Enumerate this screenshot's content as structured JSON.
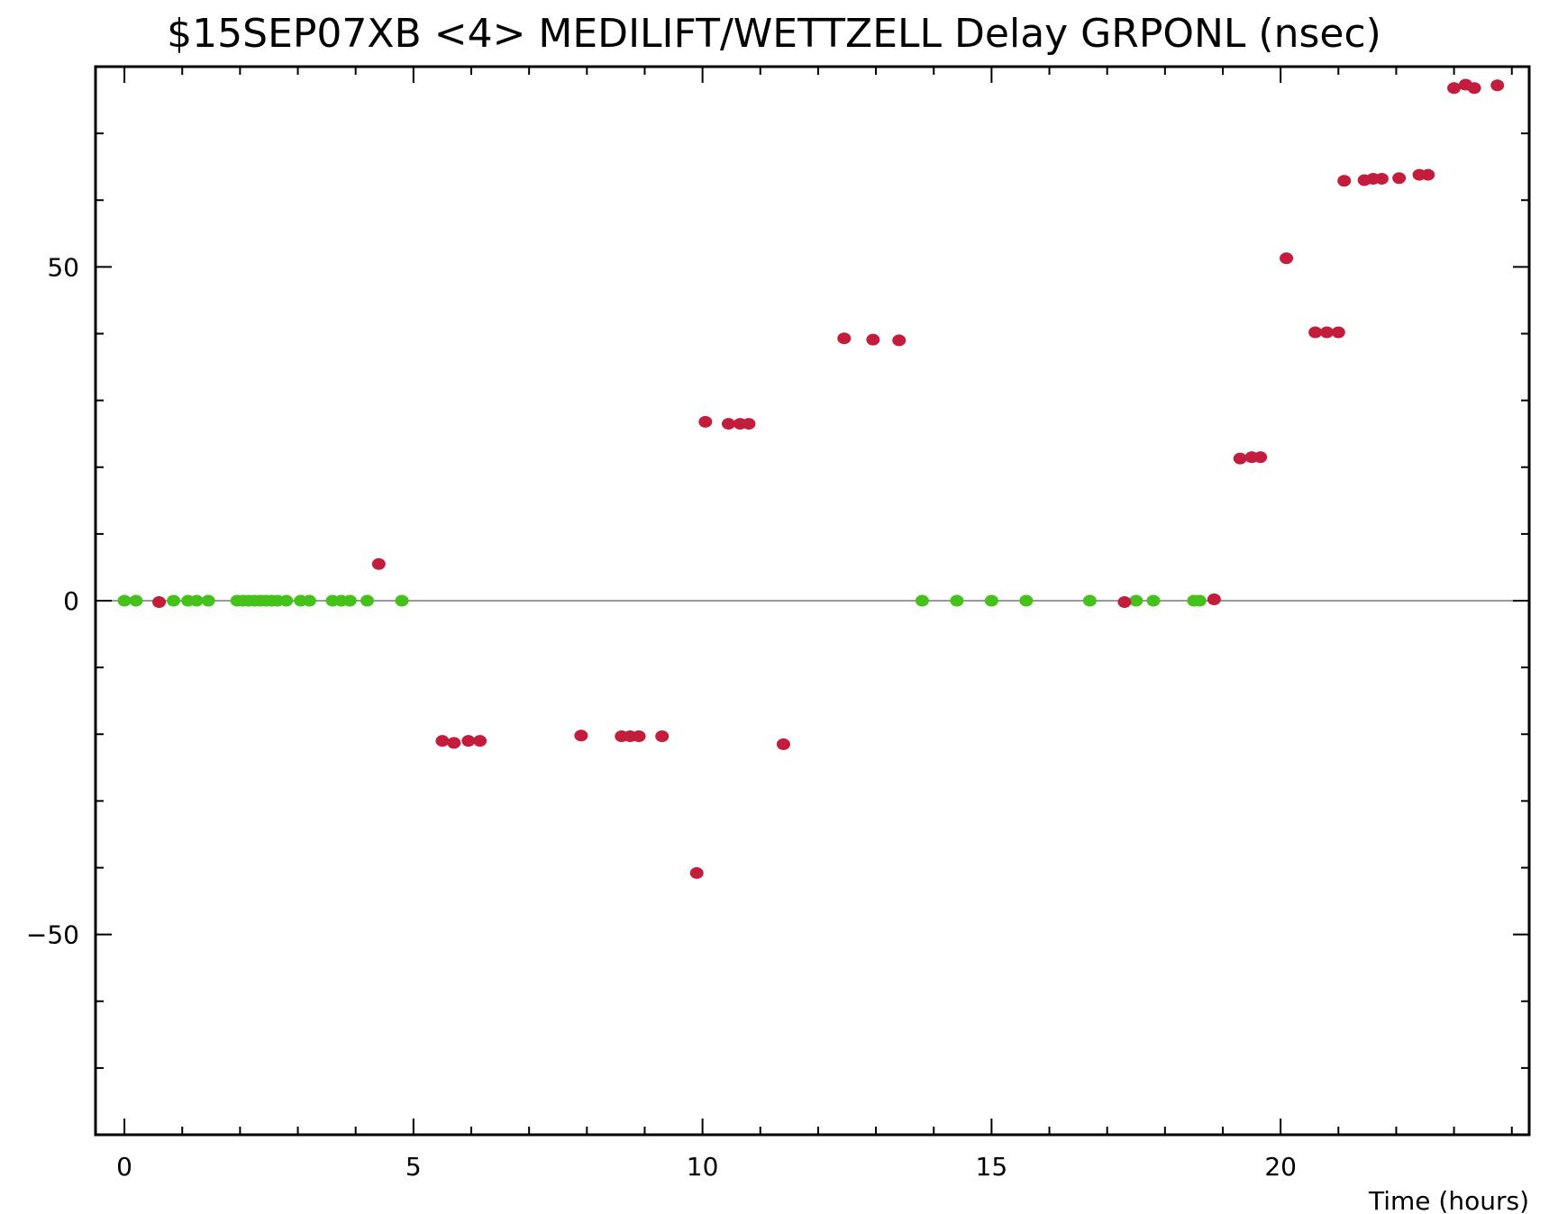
{
  "chart_data": {
    "type": "scatter",
    "title": "$15SEP07XB <4> MEDILIFT/WETTZELL Delay GRPONL (nsec)",
    "xlabel": "Time (hours)",
    "ylabel": "",
    "xlim": [
      -0.5,
      24.3
    ],
    "ylim": [
      -80,
      80
    ],
    "x_ticks": [
      0,
      5,
      10,
      15,
      20
    ],
    "y_ticks": [
      -50,
      0,
      50
    ],
    "grid": false,
    "zero_line": true,
    "colors": {
      "good": "#44c21a",
      "bad": "#c41c3c"
    },
    "series": [
      {
        "color_key": "good",
        "points": [
          [
            0.0,
            0
          ],
          [
            0.2,
            0
          ],
          [
            0.85,
            0
          ],
          [
            1.1,
            0
          ],
          [
            1.25,
            0
          ],
          [
            1.45,
            0
          ],
          [
            1.95,
            0
          ],
          [
            2.05,
            0
          ],
          [
            2.15,
            0
          ],
          [
            2.25,
            0
          ],
          [
            2.35,
            0
          ],
          [
            2.45,
            0
          ],
          [
            2.55,
            0
          ],
          [
            2.65,
            0
          ],
          [
            2.8,
            0
          ],
          [
            3.05,
            0
          ],
          [
            3.2,
            0
          ],
          [
            3.6,
            0
          ],
          [
            3.75,
            0
          ],
          [
            3.9,
            0
          ],
          [
            4.2,
            0
          ],
          [
            4.8,
            0
          ],
          [
            13.8,
            0
          ],
          [
            14.4,
            0
          ],
          [
            15.0,
            0
          ],
          [
            15.6,
            0
          ],
          [
            16.7,
            0
          ],
          [
            17.5,
            0
          ],
          [
            17.8,
            0
          ],
          [
            18.5,
            0
          ],
          [
            18.6,
            0
          ]
        ]
      },
      {
        "color_key": "bad",
        "points": [
          [
            0.6,
            -0.2
          ],
          [
            4.4,
            5.5
          ],
          [
            5.5,
            -21
          ],
          [
            5.7,
            -21.3
          ],
          [
            5.95,
            -21
          ],
          [
            6.15,
            -21
          ],
          [
            7.9,
            -20.2
          ],
          [
            8.6,
            -20.3
          ],
          [
            8.75,
            -20.3
          ],
          [
            8.9,
            -20.3
          ],
          [
            9.3,
            -20.3
          ],
          [
            9.9,
            -40.8
          ],
          [
            10.05,
            26.8
          ],
          [
            10.45,
            26.5
          ],
          [
            10.65,
            26.5
          ],
          [
            10.8,
            26.5
          ],
          [
            11.4,
            -21.5
          ],
          [
            12.45,
            39.3
          ],
          [
            12.95,
            39.1
          ],
          [
            13.4,
            39.0
          ],
          [
            17.3,
            -0.2
          ],
          [
            18.85,
            0.2
          ],
          [
            19.3,
            21.3
          ],
          [
            19.5,
            21.5
          ],
          [
            19.65,
            21.5
          ],
          [
            20.1,
            51.3
          ],
          [
            20.6,
            40.2
          ],
          [
            20.8,
            40.2
          ],
          [
            21.0,
            40.2
          ],
          [
            21.1,
            62.9
          ],
          [
            21.45,
            63.0
          ],
          [
            21.6,
            63.2
          ],
          [
            21.75,
            63.2
          ],
          [
            22.05,
            63.3
          ],
          [
            22.4,
            63.8
          ],
          [
            22.55,
            63.8
          ],
          [
            23.0,
            76.8
          ],
          [
            23.2,
            77.3
          ],
          [
            23.35,
            76.8
          ],
          [
            23.75,
            77.2
          ]
        ]
      }
    ]
  }
}
